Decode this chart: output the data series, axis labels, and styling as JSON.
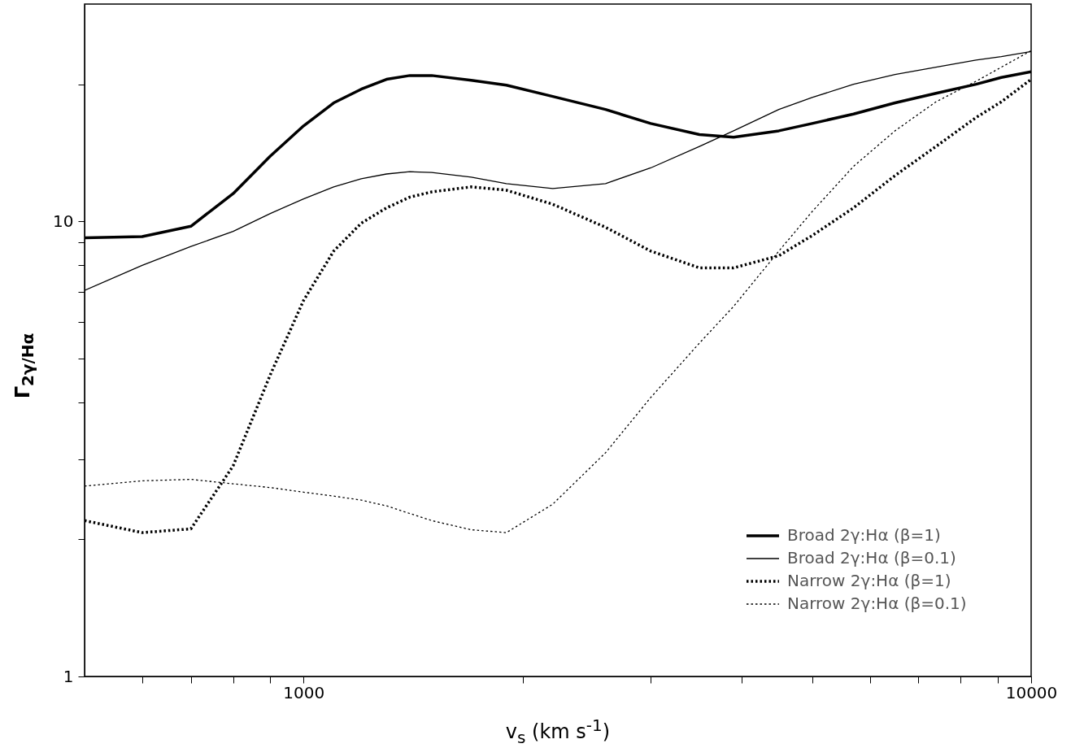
{
  "chart_data": {
    "type": "line",
    "xlabel": "v$_{s}$ (km s$^{-1}$)",
    "ylabel": "Γ$_{2γ/Hα}$",
    "log": "xy",
    "legend": "bottom right",
    "xlim": [
      500,
      10000
    ],
    "ylim": [
      1,
      30
    ],
    "xticks": [
      {
        "value": 600,
        "label": null
      },
      {
        "value": 700,
        "label": null
      },
      {
        "value": 800,
        "label": null
      },
      {
        "value": 900,
        "label": null
      },
      1000,
      {
        "value": 2000,
        "label": null
      },
      {
        "value": 3000,
        "label": null
      },
      {
        "value": 4000,
        "label": null
      },
      {
        "value": 5000,
        "label": null
      },
      {
        "value": 6000,
        "label": null
      },
      {
        "value": 7000,
        "label": null
      },
      {
        "value": 8000,
        "label": null
      },
      {
        "value": 9000,
        "label": null
      },
      10000
    ],
    "yticks": [
      1,
      {
        "value": 2,
        "label": null
      },
      {
        "value": 3,
        "label": null
      },
      {
        "value": 4,
        "label": null
      },
      {
        "value": 5,
        "label": null
      },
      {
        "value": 6,
        "label": null
      },
      {
        "value": 7,
        "label": null
      },
      {
        "value": 8,
        "label": null
      },
      {
        "value": 9,
        "label": null
      },
      10,
      {
        "value": 20,
        "label": null
      }
    ],
    "x": [
      500,
      600,
      700,
      800,
      900,
      1000,
      1100,
      1200,
      1300,
      1400,
      1500,
      1700,
      1900,
      2200,
      2600,
      3000,
      3500,
      3900,
      4500,
      5000,
      5700,
      6500,
      7400,
      8400,
      9100,
      10000
    ],
    "series": [
      {
        "name": "Broad 2γ:Hα (β=1)",
        "color": "#000000",
        "line_style": "solid",
        "values": [
          9.2,
          9.25,
          9.75,
          11.5,
          13.9,
          16.2,
          18.2,
          19.5,
          20.5,
          20.9,
          20.9,
          20.4,
          19.9,
          18.8,
          17.6,
          16.4,
          15.5,
          15.3,
          15.8,
          16.4,
          17.2,
          18.2,
          19.1,
          20.0,
          20.7,
          21.3
        ]
      },
      {
        "name": "Broad 2γ:Hα (β=0.1)",
        "color": "#000000",
        "line_style": "solid",
        "values": [
          7.05,
          8.0,
          8.8,
          9.5,
          10.4,
          11.2,
          11.9,
          12.4,
          12.7,
          12.85,
          12.8,
          12.5,
          12.1,
          11.8,
          12.1,
          13.1,
          14.6,
          15.8,
          17.6,
          18.7,
          20.0,
          21.0,
          21.8,
          22.6,
          23.0,
          23.6
        ]
      },
      {
        "name": "Narrow 2γ:Hα (β=1)",
        "color": "#000000",
        "line_style": "dotted",
        "values": [
          2.2,
          2.07,
          2.11,
          2.9,
          4.6,
          6.7,
          8.6,
          9.9,
          10.7,
          11.3,
          11.6,
          11.9,
          11.7,
          10.9,
          9.7,
          8.6,
          7.9,
          7.9,
          8.4,
          9.3,
          10.7,
          12.6,
          14.6,
          16.9,
          18.3,
          20.5
        ]
      },
      {
        "name": "Narrow 2γ:Hα (β=0.1)",
        "color": "#000000",
        "line_style": "dotted",
        "values": [
          2.62,
          2.69,
          2.71,
          2.65,
          2.6,
          2.54,
          2.49,
          2.44,
          2.37,
          2.28,
          2.2,
          2.1,
          2.07,
          2.39,
          3.1,
          4.1,
          5.4,
          6.5,
          8.6,
          10.5,
          13.2,
          15.8,
          18.3,
          20.3,
          21.8,
          23.7
        ]
      }
    ]
  }
}
